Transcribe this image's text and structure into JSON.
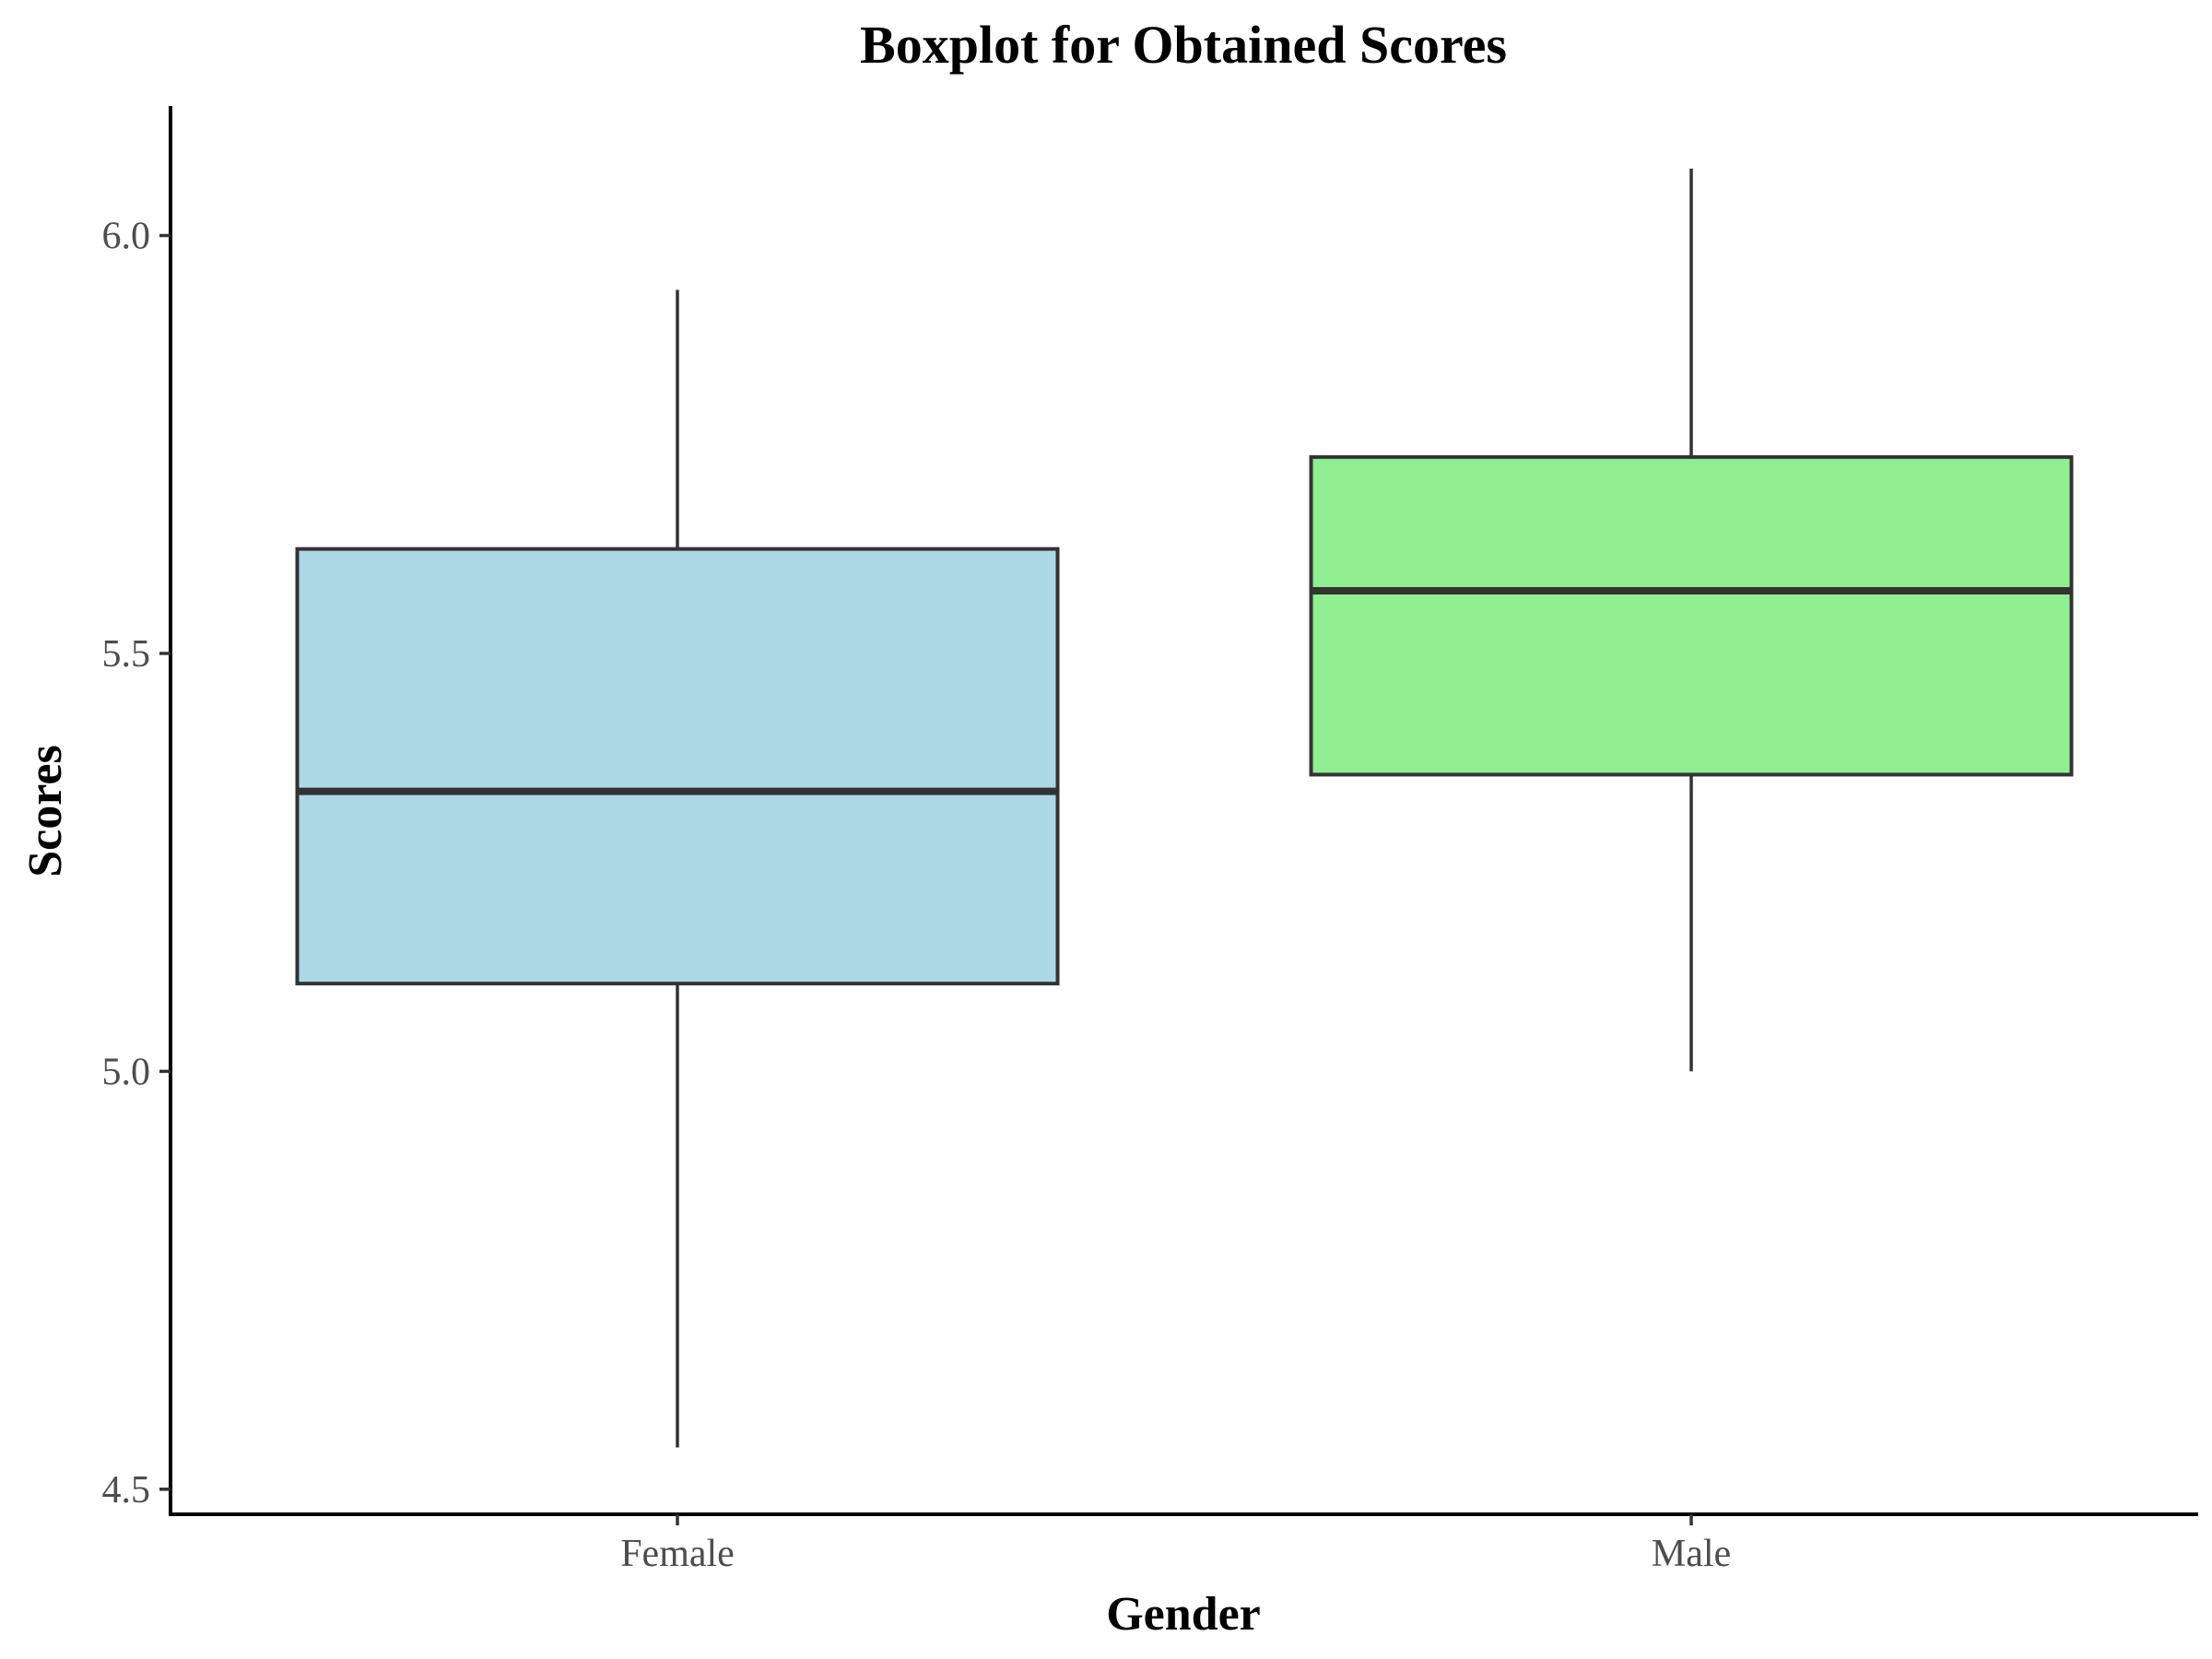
{
  "chart_data": {
    "type": "boxplot",
    "title": "Boxplot for Obtained Scores",
    "xlabel": "Gender",
    "ylabel": "Scores",
    "ylim": [
      4.47,
      6.155
    ],
    "yticks": [
      4.5,
      5.0,
      5.5,
      6.0
    ],
    "ytick_labels": [
      "4.5",
      "5.0",
      "5.5",
      "6.0"
    ],
    "grid": false,
    "categories": [
      "Female",
      "Male"
    ],
    "boxes": [
      {
        "name": "Female",
        "whisker_low": 4.55,
        "q1": 5.105,
        "median": 5.335,
        "q3": 5.625,
        "whisker_high": 5.935,
        "color": "#ADD8E6"
      },
      {
        "name": "Male",
        "whisker_low": 5.0,
        "q1": 5.355,
        "median": 5.575,
        "q3": 5.735,
        "whisker_high": 6.08,
        "color": "#90EE90"
      }
    ]
  }
}
